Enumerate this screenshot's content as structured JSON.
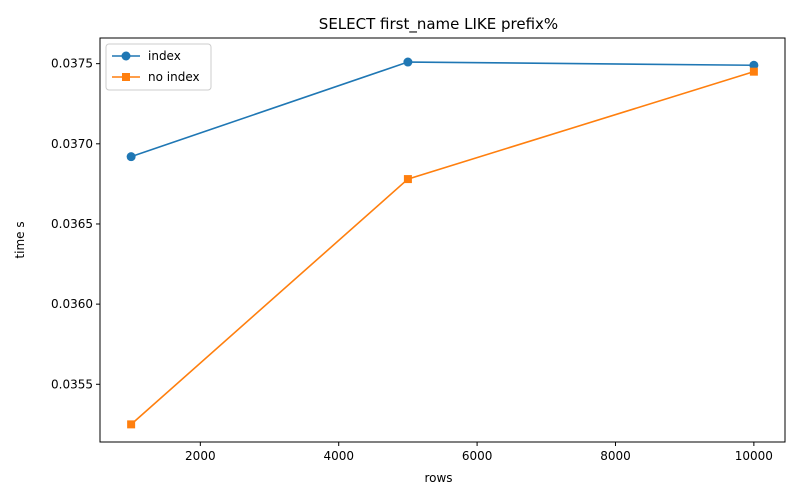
{
  "chart_data": {
    "type": "line",
    "title": "SELECT first_name LIKE prefix%",
    "xlabel": "rows",
    "ylabel": "time s",
    "x": [
      1000,
      5000,
      10000
    ],
    "xlim": [
      550,
      10450
    ],
    "ylim": [
      0.03514,
      0.03766
    ],
    "xticks": [
      2000,
      4000,
      6000,
      8000,
      10000
    ],
    "xtick_labels": [
      "2000",
      "4000",
      "6000",
      "8000",
      "10000"
    ],
    "yticks": [
      0.0355,
      0.036,
      0.0365,
      0.037,
      0.0375
    ],
    "ytick_labels": [
      "0.0355",
      "0.0360",
      "0.0365",
      "0.0370",
      "0.0375"
    ],
    "grid": false,
    "legend": "upper left",
    "series": [
      {
        "name": "index",
        "values": [
          0.03692,
          0.03751,
          0.03749
        ],
        "color": "#1f77b4",
        "marker": "circle"
      },
      {
        "name": "no index",
        "values": [
          0.03525,
          0.03678,
          0.03745
        ],
        "color": "#ff7f0e",
        "marker": "square"
      }
    ]
  }
}
